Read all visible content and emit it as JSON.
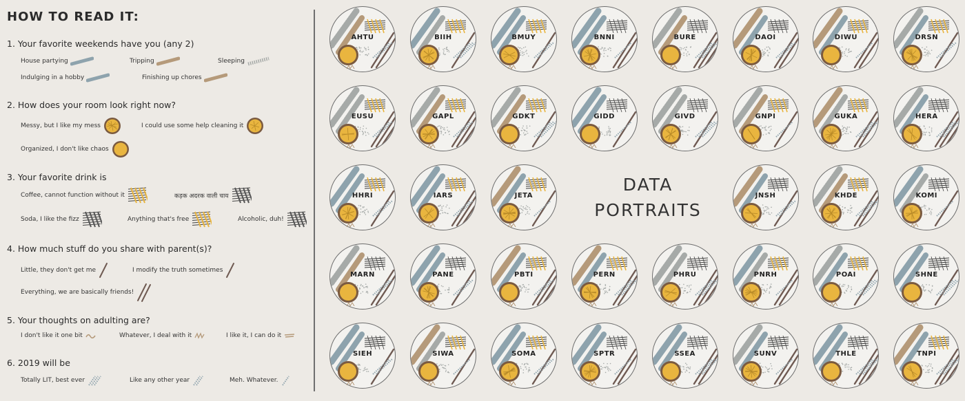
{
  "legend": {
    "title": "HOW TO READ IT:",
    "questions": [
      {
        "heading": "1.  Your favorite weekends have you (any 2)",
        "options": [
          {
            "label": "House partying",
            "glyph": "stroke-blue"
          },
          {
            "label": "Tripping",
            "glyph": "stroke-brown"
          },
          {
            "label": "Sleeping",
            "glyph": "stroke-dotted"
          },
          {
            "label": "Indulging in a hobby",
            "glyph": "stroke-blue"
          },
          {
            "label": "Finishing up chores",
            "glyph": "stroke-brown"
          }
        ]
      },
      {
        "heading": "2.  How does your room look right now?",
        "options": [
          {
            "label": "Messy, but I like my mess",
            "glyph": "bowl-messy"
          },
          {
            "label": "I could use some help cleaning it",
            "glyph": "bowl-medium"
          },
          {
            "label": "Organized, I don't like chaos",
            "glyph": "bowl-neat"
          }
        ]
      },
      {
        "heading": "3.  Your favorite drink is",
        "options": [
          {
            "label": "Coffee, cannot function without it",
            "glyph": "hatch-yellow"
          },
          {
            "label": "कड़क अदरक वाली चाय",
            "glyph": "hatch-dark"
          },
          {
            "label": "Soda, I like the fizz",
            "glyph": "hatch-dark"
          },
          {
            "label": "Anything that's free",
            "glyph": "hatch-yellow"
          },
          {
            "label": "Alcoholic, duh!",
            "glyph": "hatch-dark"
          }
        ]
      },
      {
        "heading": "4.  How much stuff do you share with parent(s)?",
        "options": [
          {
            "label": "Little, they don't get me",
            "glyph": "line-single"
          },
          {
            "label": "I modify the truth sometimes",
            "glyph": "line-single"
          },
          {
            "label": "Everything, we are basically friends!",
            "glyph": "line-double"
          }
        ]
      },
      {
        "heading": "5.  Your thoughts on adulting are?",
        "options": [
          {
            "label": "I don't like it one bit",
            "glyph": "squiggle-a"
          },
          {
            "label": "Whatever, I deal with it",
            "glyph": "squiggle-b"
          },
          {
            "label": "I like it, I can do it",
            "glyph": "squiggle-c"
          }
        ]
      },
      {
        "heading": "6.  2019 will be",
        "options": [
          {
            "label": "Totally LIT, best ever",
            "glyph": "dots-a"
          },
          {
            "label": "Like any other year",
            "glyph": "dots-b"
          },
          {
            "label": "Meh. Whatever.",
            "glyph": "dots-c"
          }
        ]
      }
    ]
  },
  "center_title": {
    "line1": "DATA",
    "line2": "PORTRAITS"
  },
  "portraits": [
    "AHTU",
    "BIIH",
    "BMUY",
    "BNNI",
    "BURE",
    "DAOI",
    "DIWU",
    "DRSN",
    "EUSU",
    "GAPL",
    "GDKT",
    "GIDD",
    "GIVD",
    "GNPI",
    "GUKA",
    "HERA",
    "HHRI",
    "IARS",
    "JETA",
    null,
    null,
    "JNSH",
    "KHDE",
    "KOMI",
    "MARN",
    "PANE",
    "PBTI",
    "PERN",
    "PHRU",
    "PNRH",
    "POAI",
    "SHNE",
    "SIEH",
    "SIWA",
    "SOMA",
    "SPTR",
    "SSEA",
    "SUNV",
    "THLE",
    "TNPI"
  ],
  "colors": {
    "background": "#edeae5",
    "blue": "#8ea3ad",
    "brown": "#b59a7a",
    "dark_brown": "#6f5a52",
    "yellow": "#e9b53f",
    "bowl_rim": "#7a5a40",
    "grey_dots": "#a6aaa8",
    "ink": "#3a3a3a"
  }
}
